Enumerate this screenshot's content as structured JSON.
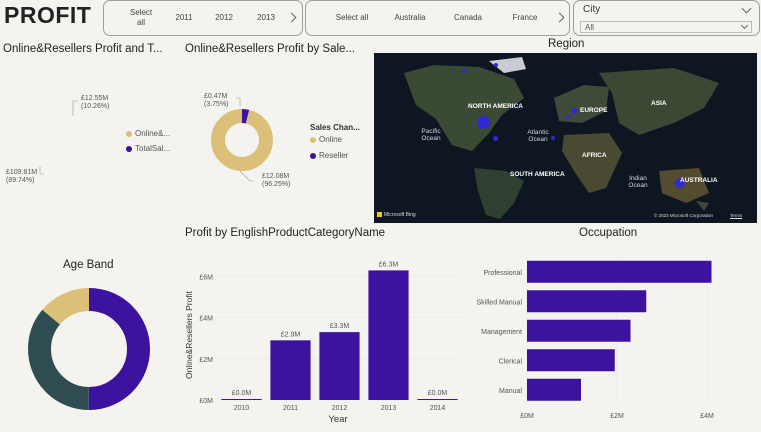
{
  "page_title": "PROFIT",
  "year_slicer": {
    "items": [
      "Select all",
      "2011",
      "2012",
      "2013"
    ]
  },
  "country_slicer": {
    "items": [
      "Select all",
      "Australia",
      "Canada",
      "France"
    ]
  },
  "city_filter": {
    "label": "City",
    "value": "All"
  },
  "donut1": {
    "title": "Online&Resellers Profit and T...",
    "slices": [
      {
        "label": "£12.55M",
        "pct": "(10.26%)",
        "value": 10.26,
        "color": "#dcc07a"
      },
      {
        "label": "£109.81M",
        "pct": "(89.74%)",
        "value": 89.74,
        "color": "#3d129f"
      }
    ],
    "legend": [
      {
        "name": "Online&...",
        "color": "#dcc07a"
      },
      {
        "name": "TotalSal...",
        "color": "#3d129f"
      }
    ]
  },
  "donut2": {
    "title": "Online&Resellers Profit by Sale...",
    "legend_title": "Sales Chan...",
    "slices": [
      {
        "label": "£0.47M",
        "pct": "(3.75%)",
        "value": 3.75,
        "color": "#3d129f"
      },
      {
        "label": "£12.08M",
        "pct": "(96.25%)",
        "value": 96.25,
        "color": "#dcc07a"
      }
    ],
    "legend": [
      {
        "name": "Online",
        "color": "#dcc07a"
      },
      {
        "name": "Reseller",
        "color": "#3d129f"
      }
    ]
  },
  "map": {
    "title": "Region",
    "labels": [
      "NORTH AMERICA",
      "EUROPE",
      "ASIA",
      "AFRICA",
      "SOUTH AMERICA",
      "AUSTRALIA"
    ],
    "oceans": [
      "Pacific Ocean",
      "Atlantic Ocean",
      "Indian Ocean"
    ],
    "logo": "Microsoft Bing",
    "copyright": "© 2023 Microsoft Corporation",
    "terms": "Terms"
  },
  "age_band": {
    "title": "Age Band",
    "slices": [
      {
        "value": 50,
        "color": "#3d129f"
      },
      {
        "value": 36,
        "color": "#2f4d50"
      },
      {
        "value": 14,
        "color": "#dcc07a"
      }
    ]
  },
  "bar_chart": {
    "title": "Profit by EnglishProductCategoryName",
    "xlabel": "Year",
    "ylabel": "Online&Resellers Profit",
    "y_ticks": [
      "£0M",
      "£2M",
      "£4M",
      "£6M"
    ]
  },
  "occupation": {
    "title": "Occupation",
    "x_ticks": [
      "£0M",
      "£2M",
      "£4M"
    ]
  },
  "chart_data": [
    {
      "type": "bar",
      "title": "Profit by EnglishProductCategoryName",
      "xlabel": "Year",
      "ylabel": "Online&Resellers Profit",
      "categories": [
        "2010",
        "2011",
        "2012",
        "2013",
        "2014"
      ],
      "values": [
        0.0,
        2.9,
        3.3,
        6.3,
        0.0
      ],
      "data_labels": [
        "£0.0M",
        "£2.9M",
        "£3.3M",
        "£6.3M",
        "£0.0M"
      ],
      "ylim": [
        0,
        7
      ],
      "color": "#3d129f"
    },
    {
      "type": "bar",
      "orientation": "horizontal",
      "title": "Occupation",
      "categories": [
        "Professional",
        "Skilled Manual",
        "Management",
        "Clerical",
        "Manual"
      ],
      "values": [
        4.1,
        2.65,
        2.3,
        1.95,
        1.2
      ],
      "xlim": [
        0,
        4.6
      ],
      "color": "#3d129f"
    }
  ]
}
